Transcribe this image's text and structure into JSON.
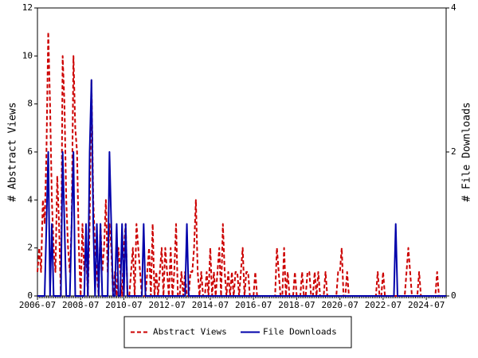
{
  "chart_data": {
    "type": "line",
    "y_label": "# Abstract Views",
    "y2_label": "# File Downloads",
    "categories": [
      "2006-07",
      null,
      null,
      null,
      null,
      null,
      null,
      null,
      null,
      null,
      null,
      null,
      null,
      null,
      null,
      null,
      null,
      null,
      null,
      null,
      null,
      null,
      null,
      null,
      "2008-07",
      null,
      null,
      null,
      null,
      null,
      null,
      null,
      null,
      null,
      null,
      null,
      null,
      null,
      null,
      null,
      null,
      null,
      null,
      null,
      null,
      null,
      null,
      null,
      "2010-07",
      null,
      null,
      null,
      null,
      null,
      null,
      null,
      null,
      null,
      null,
      null,
      null,
      null,
      null,
      null,
      null,
      null,
      null,
      null,
      null,
      null,
      null,
      null,
      "2012-07",
      null,
      null,
      null,
      null,
      null,
      null,
      null,
      null,
      null,
      null,
      null,
      null,
      null,
      null,
      null,
      null,
      null,
      null,
      null,
      null,
      null,
      null,
      null,
      "2014-07",
      null,
      null,
      null,
      null,
      null,
      null,
      null,
      null,
      null,
      null,
      null,
      null,
      null,
      null,
      null,
      null,
      null,
      null,
      null,
      null,
      null,
      null,
      null,
      "2016-07",
      null,
      null,
      null,
      null,
      null,
      null,
      null,
      null,
      null,
      null,
      null,
      null,
      null,
      null,
      null,
      null,
      null,
      null,
      null,
      null,
      null,
      null,
      null,
      "2018-07",
      null,
      null,
      null,
      null,
      null,
      null,
      null,
      null,
      null,
      null,
      null,
      null,
      null,
      null,
      null,
      null,
      null,
      null,
      null,
      null,
      null,
      null,
      null,
      "2020-07",
      null,
      null,
      null,
      null,
      null,
      null,
      null,
      null,
      null,
      null,
      null,
      null,
      null,
      null,
      null,
      null,
      null,
      null,
      null,
      null,
      null,
      null,
      null,
      "2022-07",
      null,
      null,
      null,
      null,
      null,
      null,
      null,
      null,
      null,
      null,
      null,
      null,
      null,
      null,
      null,
      null,
      null,
      null,
      null,
      null,
      null,
      null,
      null,
      "2024-07",
      null,
      null,
      null,
      null,
      null,
      null,
      null,
      null,
      null,
      null,
      null
    ],
    "series": [
      {
        "name": "Abstract Views",
        "color": "#cc0000",
        "dashed": true,
        "axis": "y",
        "values": [
          1,
          2,
          1,
          4,
          3,
          6,
          11,
          8,
          4,
          2,
          1,
          5,
          3,
          0,
          10,
          8,
          4,
          2,
          1,
          3,
          10,
          7,
          6,
          2,
          0,
          3,
          1,
          2,
          0,
          3,
          9,
          4,
          2,
          1,
          0,
          3,
          1,
          2,
          4,
          1,
          3,
          2,
          0,
          1,
          0,
          2,
          1,
          0,
          2,
          3,
          0,
          0,
          1,
          2,
          0,
          3,
          2,
          1,
          0,
          0,
          0,
          1,
          2,
          0,
          3,
          0,
          1,
          0,
          1,
          2,
          0,
          2,
          1,
          0,
          2,
          0,
          1,
          3,
          0,
          0,
          1,
          0,
          1,
          0,
          0,
          1,
          1,
          2,
          4,
          1,
          0,
          1,
          0,
          0,
          1,
          0,
          2,
          0,
          1,
          0,
          1,
          2,
          0,
          3,
          1,
          0,
          1,
          0,
          1,
          0,
          1,
          1,
          0,
          1,
          2,
          0,
          1,
          1,
          0,
          0,
          0,
          1,
          0,
          0,
          0,
          0,
          0,
          0,
          0,
          0,
          0,
          0,
          0,
          2,
          1,
          0,
          0,
          2,
          0,
          1,
          0,
          0,
          0,
          1,
          0,
          0,
          0,
          1,
          0,
          0,
          1,
          1,
          0,
          0,
          1,
          0,
          1,
          0,
          0,
          0,
          1,
          0,
          0,
          0,
          0,
          0,
          0,
          1,
          1,
          2,
          0,
          0,
          1,
          0,
          0,
          0,
          0,
          0,
          0,
          0,
          0,
          0,
          0,
          0,
          0,
          0,
          0,
          0,
          0,
          1,
          0,
          0,
          1,
          0,
          0,
          0,
          0,
          0,
          0,
          0,
          0,
          0,
          0,
          0,
          0,
          1,
          2,
          1,
          0,
          0,
          0,
          0,
          1,
          0,
          0,
          0,
          0,
          0,
          0,
          0,
          0,
          0,
          1,
          0,
          0,
          0,
          0,
          0
        ]
      },
      {
        "name": "File Downloads",
        "color": "#0000aa",
        "dashed": false,
        "axis": "y2",
        "values": [
          0,
          0,
          0,
          0,
          0,
          1,
          2,
          0,
          1,
          0,
          0,
          0,
          0,
          0,
          2,
          1,
          0,
          0,
          0,
          1,
          2,
          0,
          0,
          0,
          0,
          0,
          0,
          1,
          0,
          2,
          3,
          1,
          0,
          1,
          0,
          1,
          0,
          0,
          0,
          0,
          2,
          1,
          0,
          0,
          1,
          0,
          0,
          1,
          0,
          1,
          0,
          0,
          0,
          0,
          0,
          0,
          0,
          0,
          0,
          1,
          0,
          0,
          0,
          0,
          0,
          0,
          0,
          0,
          0,
          0,
          0,
          0,
          0,
          0,
          0,
          0,
          0,
          0,
          0,
          0,
          0,
          0,
          0,
          1,
          0,
          0,
          0,
          0,
          0,
          0,
          0,
          0,
          0,
          0,
          0,
          0,
          0,
          0,
          0,
          0,
          0,
          0,
          0,
          0,
          0,
          0,
          0,
          0,
          0,
          0,
          0,
          0,
          0,
          0,
          0,
          0,
          0,
          0,
          0,
          0,
          0,
          0,
          0,
          0,
          0,
          0,
          0,
          0,
          0,
          0,
          0,
          0,
          0,
          0,
          0,
          0,
          0,
          0,
          0,
          0,
          0,
          0,
          0,
          0,
          0,
          0,
          0,
          0,
          0,
          0,
          0,
          0,
          0,
          0,
          0,
          0,
          0,
          0,
          0,
          0,
          0,
          0,
          0,
          0,
          0,
          0,
          0,
          0,
          0,
          0,
          0,
          0,
          0,
          0,
          0,
          0,
          0,
          0,
          0,
          0,
          0,
          0,
          0,
          0,
          0,
          0,
          0,
          0,
          0,
          0,
          0,
          0,
          0,
          0,
          0,
          0,
          0,
          0,
          0,
          1,
          0,
          0,
          0,
          0,
          0,
          0,
          0,
          0,
          0,
          0,
          0,
          0,
          0,
          0,
          0,
          0,
          0,
          0,
          0,
          0,
          0,
          0,
          0,
          0,
          0,
          0,
          0,
          0
        ]
      }
    ],
    "ylim": [
      0,
      12
    ],
    "yticks": [
      0,
      2,
      4,
      6,
      8,
      10,
      12
    ],
    "y2lim": [
      0,
      4
    ],
    "y2ticks": [
      0,
      2,
      4
    ],
    "grid": false,
    "legend": "bottom"
  }
}
